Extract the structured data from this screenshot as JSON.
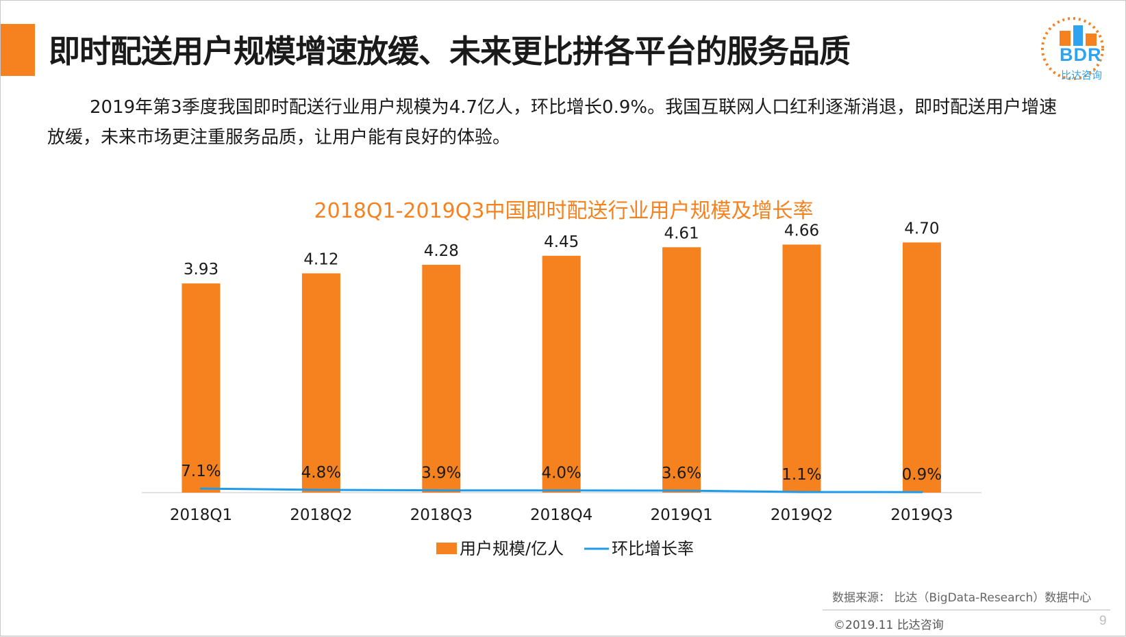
{
  "header": {
    "title": "即时配送用户规模增速放缓、未来更比拼各平台的服务品质"
  },
  "logo": {
    "mark": "BDR",
    "subtitle": "比达咨询"
  },
  "summary": "2019年第3季度我国即时配送行业用户规模为4.7亿人，环比增长0.9%。我国互联网人口红利逐渐消退，即时配送用户增速放缓，未来市场更注重服务品质，让用户能有良好的体验。",
  "colors": {
    "bar": "#f5821f",
    "line": "#1f9bea",
    "title_accent": "#f5821f"
  },
  "chart_data": {
    "type": "bar",
    "title": "2018Q1-2019Q3中国即时配送行业用户规模及增长率",
    "categories": [
      "2018Q1",
      "2018Q2",
      "2018Q3",
      "2018Q4",
      "2019Q1",
      "2019Q2",
      "2019Q3"
    ],
    "series": [
      {
        "name": "用户规模/亿人",
        "type": "bar",
        "values": [
          3.93,
          4.12,
          4.28,
          4.45,
          4.61,
          4.66,
          4.7
        ],
        "labels": [
          "3.93",
          "4.12",
          "4.28",
          "4.45",
          "4.61",
          "4.66",
          "4.70"
        ]
      },
      {
        "name": "环比增长率",
        "type": "line",
        "values": [
          7.1,
          4.8,
          3.9,
          4.0,
          3.6,
          1.1,
          0.9
        ],
        "labels": [
          "7.1%",
          "4.8%",
          "3.9%",
          "4.0%",
          "3.6%",
          "1.1%",
          "0.9%"
        ]
      }
    ],
    "ylim": [
      0,
      5
    ],
    "y2lim": [
      0,
      400
    ],
    "grid": false,
    "legend_position": "bottom"
  },
  "footer": {
    "source": "数据来源： 比达（BigData-Research）数据中心",
    "copyright": "©2019.11  比达咨询",
    "page_number": "9"
  }
}
